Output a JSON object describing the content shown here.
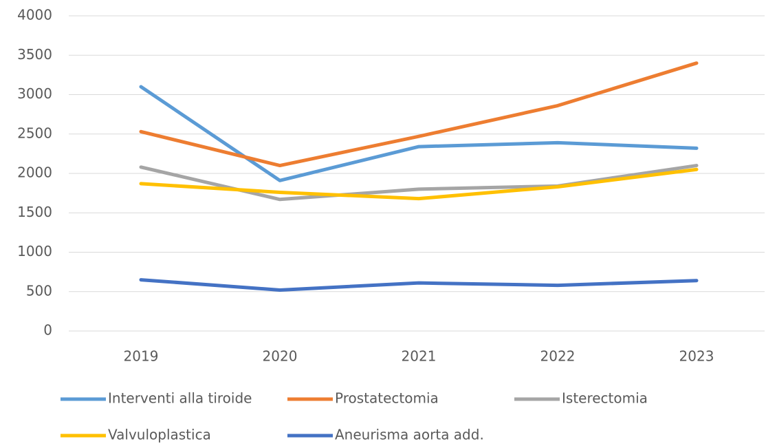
{
  "chart_data": {
    "type": "line",
    "categories": [
      "2019",
      "2020",
      "2021",
      "2022",
      "2023"
    ],
    "series": [
      {
        "name": "Interventi alla tiroide",
        "color": "#5b9bd5",
        "values": [
          3100,
          1910,
          2340,
          2390,
          2320
        ]
      },
      {
        "name": "Prostatectomia",
        "color": "#ed7d31",
        "values": [
          2530,
          2100,
          2470,
          2860,
          3400
        ]
      },
      {
        "name": "Isterectomia",
        "color": "#a5a5a5",
        "values": [
          2080,
          1670,
          1800,
          1840,
          2100
        ]
      },
      {
        "name": "Valvuloplastica",
        "color": "#ffc000",
        "values": [
          1870,
          1760,
          1680,
          1830,
          2050
        ]
      },
      {
        "name": "Aneurisma aorta add.",
        "color": "#4472c4",
        "values": [
          650,
          520,
          610,
          580,
          640
        ]
      }
    ],
    "ylim": [
      0,
      4000
    ],
    "yticks": [
      0,
      500,
      1000,
      1500,
      2000,
      2500,
      3000,
      3500,
      4000
    ],
    "grid": true
  }
}
